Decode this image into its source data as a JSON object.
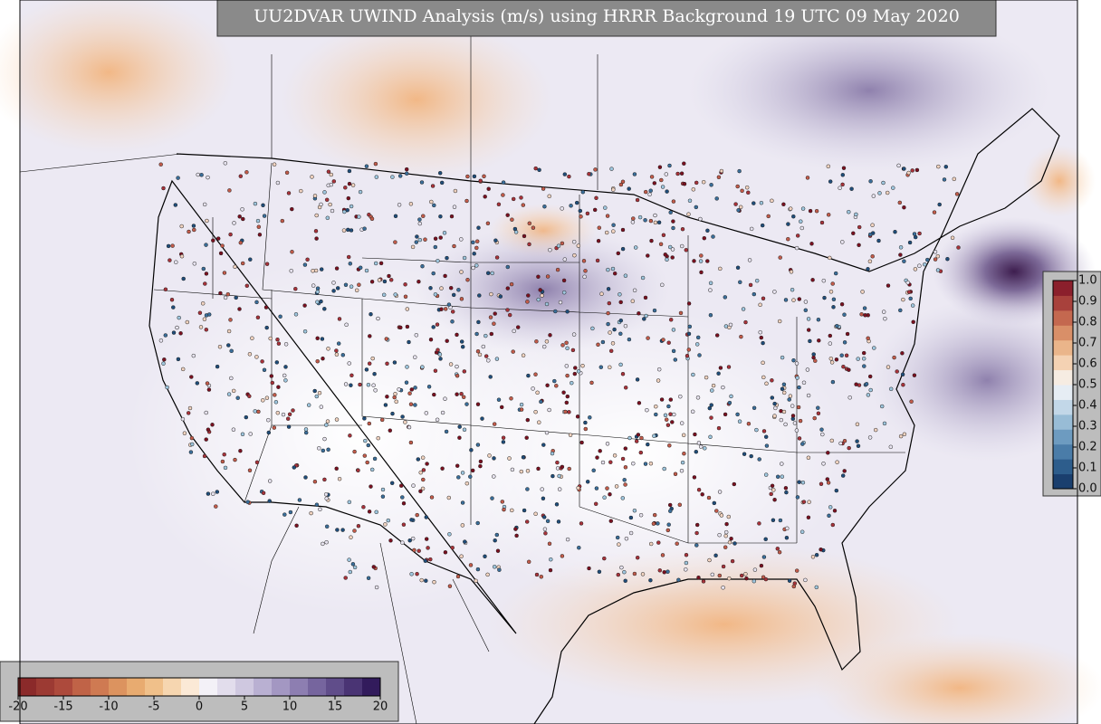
{
  "title": "UU2DVAR UWIND Analysis (m/s) using HRRR Background 19 UTC 09 May 2020",
  "colorbars": [
    {
      "ticks": [
        "-20",
        "-15",
        "-10",
        "-5",
        "0",
        "5",
        "10",
        "15",
        "20"
      ]
    },
    {
      "ticks": [
        "0.0",
        "0.1",
        "0.2",
        "0.3",
        "0.4",
        "0.5",
        "0.6",
        "0.7",
        "0.8",
        "0.9",
        "1.0"
      ]
    }
  ]
}
